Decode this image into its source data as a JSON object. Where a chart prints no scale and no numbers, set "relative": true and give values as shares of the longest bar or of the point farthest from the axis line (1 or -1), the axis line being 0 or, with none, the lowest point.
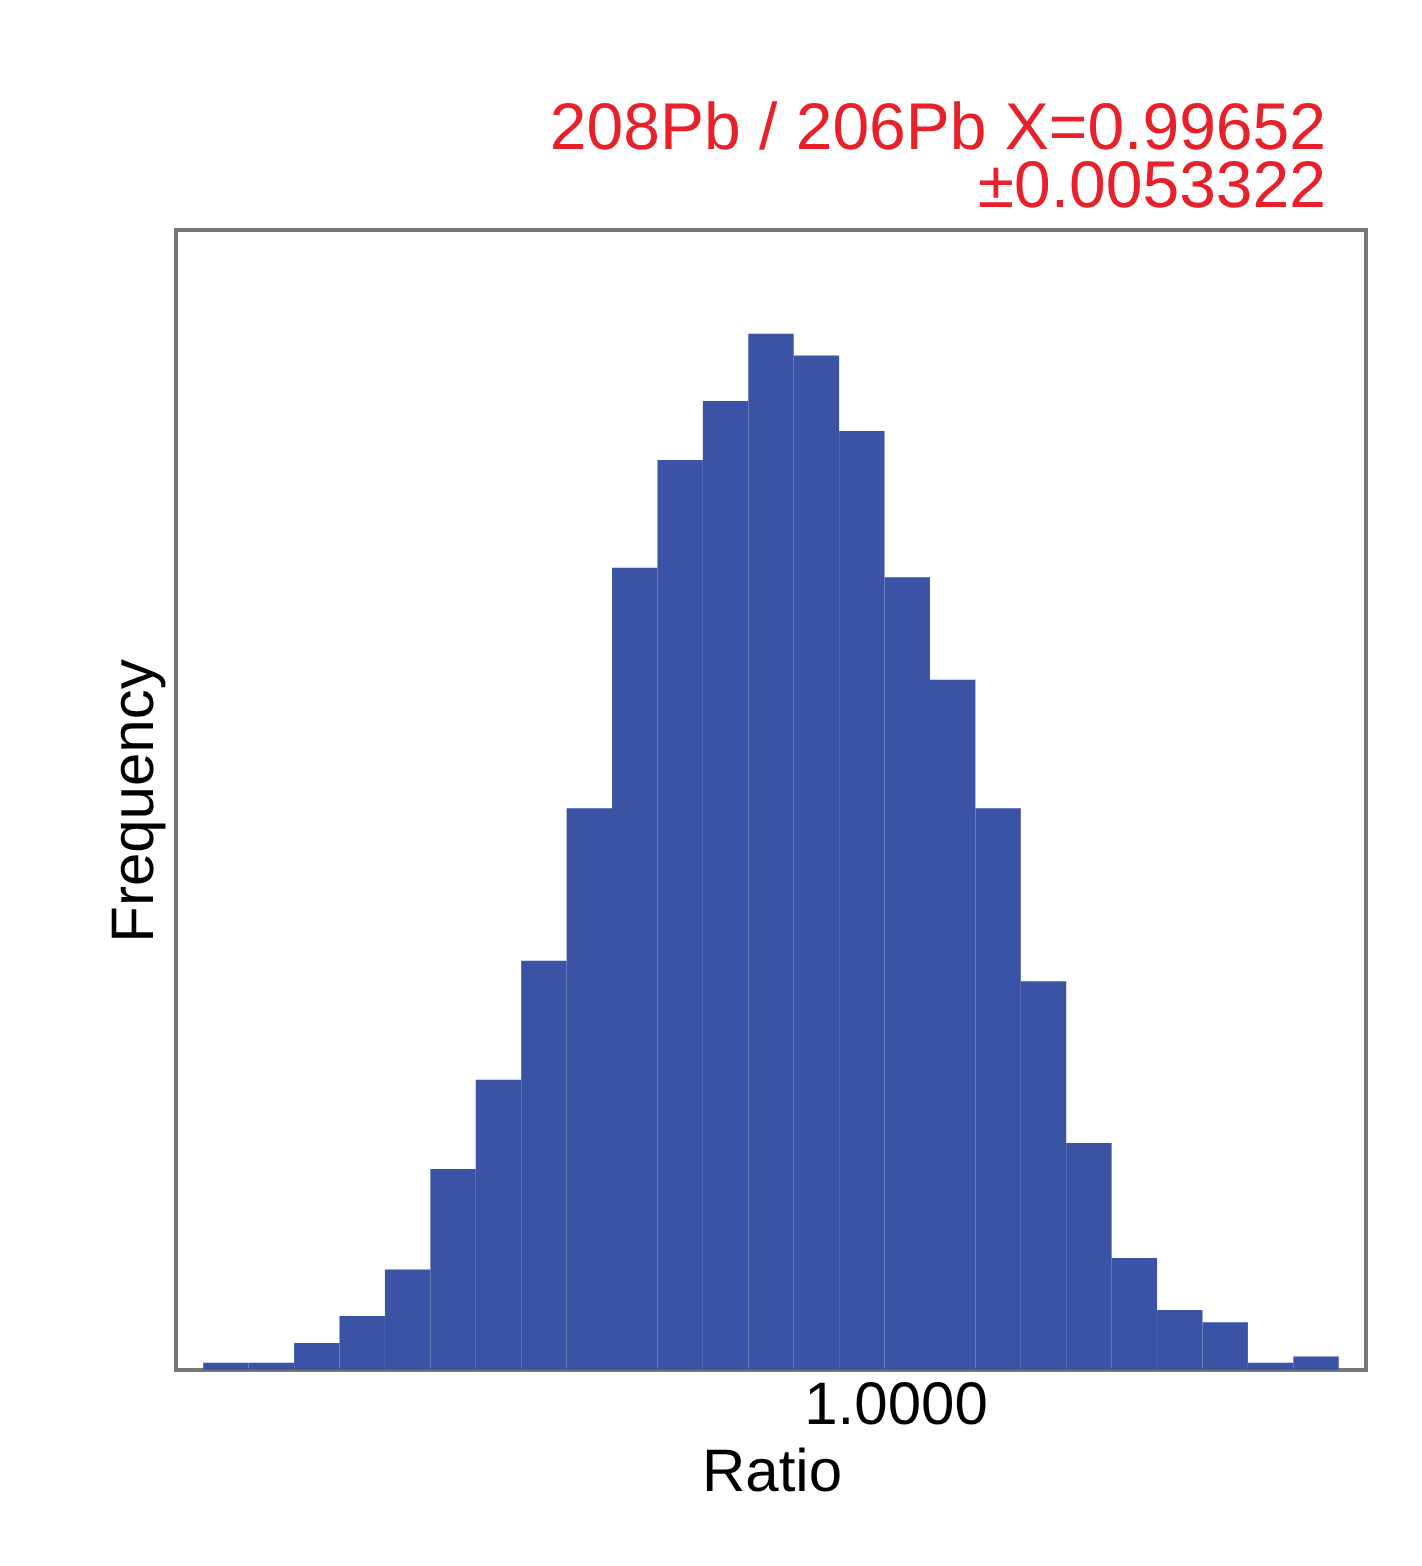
{
  "chart_data": {
    "type": "bar",
    "title": "208Pb / 206Pb  X=0.99652",
    "subtitle": "±0.0053322",
    "xlabel": "Ratio",
    "ylabel": "Frequency",
    "relative": true,
    "color": "#3a53a4",
    "categories": [
      null,
      null,
      null,
      null,
      null,
      null,
      null,
      null,
      null,
      null,
      null,
      null,
      null,
      null,
      null,
      null,
      null,
      null,
      null,
      null,
      null,
      null,
      null,
      null,
      null
    ],
    "values": [
      0.007,
      0.007,
      0.026,
      0.052,
      0.097,
      0.194,
      0.28,
      0.395,
      0.542,
      0.774,
      0.878,
      0.935,
      1,
      0.979,
      0.906,
      0.765,
      0.666,
      0.542,
      0.375,
      0.219,
      0.108,
      0.058,
      0.046,
      0.007,
      0.013
    ],
    "annotations": [
      "1.0000"
    ]
  }
}
